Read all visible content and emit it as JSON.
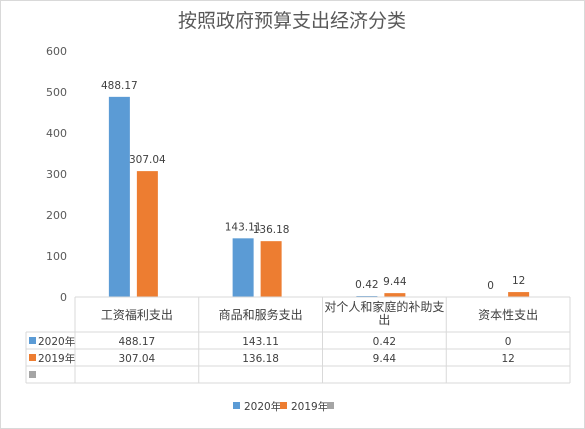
{
  "chart_data": {
    "type": "bar",
    "title": "按照政府预算支出经济分类",
    "categories": [
      "工资福利支出",
      "商品和服务支出",
      "对个人和家庭的补助支出",
      "资本性支出"
    ],
    "category_lines": [
      [
        "工资福利支出"
      ],
      [
        "商品和服务支出"
      ],
      [
        "对个人和家庭的补助支",
        "出"
      ],
      [
        "资本性支出"
      ]
    ],
    "series": [
      {
        "name": "2020年",
        "color": "#5b9bd5",
        "values": [
          488.17,
          143.11,
          0.42,
          0
        ],
        "labels": [
          "488.17",
          "143.11",
          "0.42",
          "0"
        ]
      },
      {
        "name": "2019年",
        "color": "#ed7d31",
        "values": [
          307.04,
          136.18,
          9.44,
          12
        ],
        "labels": [
          "307.04",
          "136.18",
          "9.44",
          "12"
        ]
      },
      {
        "name": "",
        "color": "#a5a5a5",
        "values": [
          null,
          null,
          null,
          null
        ],
        "labels": [
          "",
          "",
          "",
          ""
        ]
      }
    ],
    "ylim": [
      0,
      600
    ],
    "yticks": [
      "0",
      "100",
      "200",
      "300",
      "400",
      "500",
      "600"
    ],
    "legend": "bottom",
    "data_table": true,
    "grid": false
  }
}
